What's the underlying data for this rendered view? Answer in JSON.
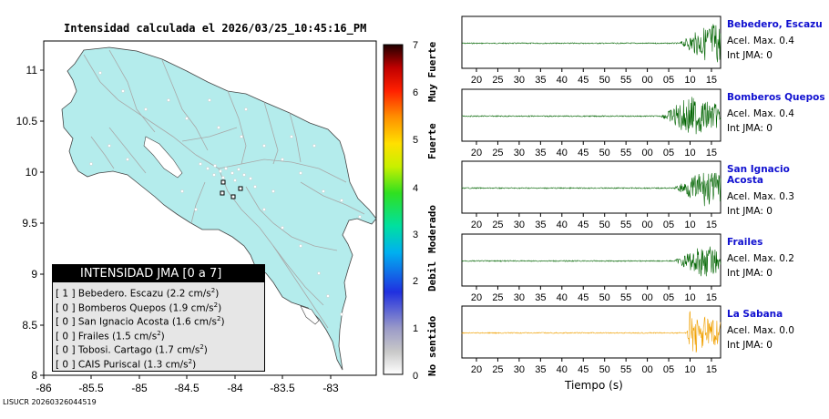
{
  "map": {
    "title": "Intensidad calculada el 2026/03/25_10:45:16_PM",
    "lon_ticks": [
      "-86",
      "-85.5",
      "-85",
      "-84.5",
      "-84",
      "-83.5",
      "-83"
    ],
    "lat_ticks": [
      "11",
      "10.5",
      "10",
      "9.5",
      "9",
      "8.5",
      "8"
    ],
    "land_color": "#b4ecec",
    "road_color": "#a8a8a8"
  },
  "colorbar": {
    "ticks": [
      "7",
      "6",
      "5",
      "4",
      "3",
      "2",
      "1",
      "0"
    ],
    "categories": [
      "Muy Fuerte",
      "Fuerte",
      "Moderado",
      "Debil",
      "No sentido"
    ]
  },
  "legend": {
    "header": "INTENSIDAD JMA [0 a 7]",
    "unit_base": "cm/s",
    "unit_exp": "2",
    "items": [
      {
        "intensity": "[ 1 ]",
        "station": "Bebedero. Escazu",
        "pga": "(2.2 "
      },
      {
        "intensity": "[ 0 ]",
        "station": "Bomberos Quepos",
        "pga": "(1.9 "
      },
      {
        "intensity": "[ 0 ]",
        "station": "San Ignacio Acosta",
        "pga": "(1.6 "
      },
      {
        "intensity": "[ 0 ]",
        "station": "Frailes",
        "pga": "(1.5 "
      },
      {
        "intensity": "[ 0 ]",
        "station": "Tobosi. Cartago",
        "pga": "(1.7 "
      },
      {
        "intensity": "[ 0 ]",
        "station": "CAIS Puriscal",
        "pga": "(1.3 "
      }
    ]
  },
  "footer_id": "LISUCR 20260326044519",
  "waveforms": {
    "time_ticks": [
      "20",
      "25",
      "30",
      "35",
      "40",
      "45",
      "50",
      "55",
      "00",
      "05",
      "10",
      "15"
    ],
    "xlabel": "Tiempo (s)",
    "accel_prefix": "Acel. Max.",
    "jma_prefix": "Int JMA:",
    "panels": [
      {
        "station": "Bebedero, Escazu",
        "acel": "0.4",
        "jma": "0",
        "color": "#006400"
      },
      {
        "station": "Bomberos Quepos",
        "acel": "0.4",
        "jma": "0",
        "color": "#006400"
      },
      {
        "station": "San Ignacio Acosta",
        "acel": "0.3",
        "jma": "0",
        "color": "#006400"
      },
      {
        "station": "Frailes",
        "acel": "0.2",
        "jma": "0",
        "color": "#006400"
      },
      {
        "station": "La Sabana",
        "acel": "0.0",
        "jma": "0",
        "color": "#f0a000"
      }
    ]
  }
}
